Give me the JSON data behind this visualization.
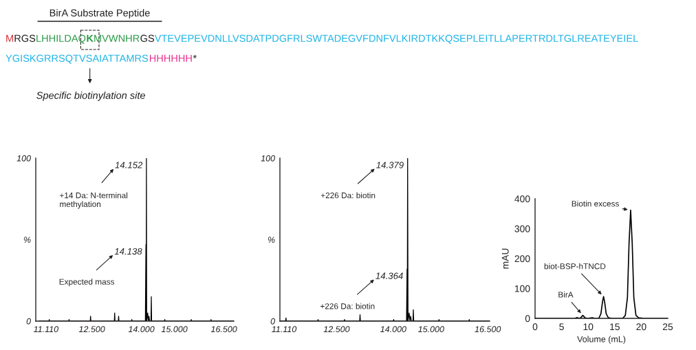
{
  "chart_data": [
    {
      "type": "other",
      "title": "BirA Substrate Peptide",
      "annotations": [
        "M",
        "RGS",
        "LHHILDAQ",
        "K",
        "MVWNHR",
        "GS",
        "VTEVEPEVDNLLVSDATPDGFRLSWTADEGVFDNFVLKIRDTKKQSEPLEITLLAPERTRDLTGLREATEYEIEL",
        "YGISKGRRSQTVSAIATTAMRS",
        "HHHHHH",
        "*",
        "Specific biotinylation site"
      ],
      "colors": [
        "#d62f3a",
        "#231f20",
        "#2a9a48",
        "#2a9a48",
        "#2a9a48",
        "#231f20",
        "#1fb4e6",
        "#1fb4e6",
        "#e8308f",
        "#231f20",
        "#231f20"
      ]
    },
    {
      "type": "line",
      "series": [
        {
          "color": "#000000",
          "x": [
            10900,
            11200,
            11210,
            11220,
            11800,
            11810,
            11820,
            12450,
            12460,
            12470,
            13180,
            13190,
            13200,
            13300,
            13310,
            13320,
            13700,
            13710,
            13720,
            14120,
            14138,
            14145,
            14152,
            14160,
            14190,
            14210,
            14230,
            14250,
            14290,
            14300,
            14310,
            14700,
            14710,
            14720,
            15500,
            15510,
            15520,
            16100,
            16110,
            16120,
            16800
          ],
          "values": [
            0,
            0,
            1,
            0,
            0,
            1,
            0,
            0,
            3,
            0,
            0,
            5,
            0,
            0,
            3,
            0,
            0,
            1,
            0,
            0,
            47,
            0,
            100,
            0,
            5,
            0,
            3,
            0,
            0,
            15,
            0,
            0,
            1,
            0,
            0,
            1,
            0,
            0,
            1,
            0,
            0
          ]
        }
      ],
      "xlim": [
        10800,
        16800
      ],
      "xticks": [
        {
          "value": 11110,
          "label": "11.110"
        },
        {
          "value": 12500,
          "label": "12.500"
        },
        {
          "value": 14000,
          "label": "14.000"
        },
        {
          "value": 15000,
          "label": "15.000"
        },
        {
          "value": 16500,
          "label": "16.500"
        }
      ],
      "ylim": [
        0,
        100
      ],
      "yticks": [
        0,
        {
          "value": 50,
          "label": "%"
        },
        100
      ],
      "annotations": [
        {
          "text": "14.152",
          "x": 14152,
          "y": 100
        },
        "+14 Da: N-terminal\nmethylation",
        {
          "text": "14.138",
          "x": 14138,
          "y": 47
        },
        "Expected mass"
      ]
    },
    {
      "type": "line",
      "series": [
        {
          "color": "#000000",
          "x": [
            11000,
            11150,
            11160,
            11170,
            12000,
            12010,
            12020,
            12700,
            12710,
            12720,
            13110,
            13120,
            13130,
            14000,
            14010,
            14020,
            14350,
            14364,
            14370,
            14379,
            14390,
            14420,
            14440,
            14460,
            14480,
            14520,
            14530,
            14540,
            15200,
            15210,
            15220,
            16000,
            16010,
            16020,
            16550
          ],
          "values": [
            0,
            0,
            2,
            0,
            0,
            1,
            0,
            0,
            1,
            0,
            0,
            4,
            0,
            0,
            1,
            0,
            0,
            32,
            0,
            100,
            0,
            5,
            0,
            3,
            0,
            0,
            7,
            0,
            0,
            1,
            0,
            0,
            1,
            0,
            0
          ]
        }
      ],
      "xlim": [
        11000,
        16550
      ],
      "xticks": [
        {
          "value": 11110,
          "label": "11.110"
        },
        {
          "value": 12500,
          "label": "12.500"
        },
        {
          "value": 14000,
          "label": "14.000"
        },
        {
          "value": 15000,
          "label": "15.000"
        },
        {
          "value": 16500,
          "label": "16.500"
        }
      ],
      "ylim": [
        0,
        100
      ],
      "yticks": [
        0,
        {
          "value": 50,
          "label": "%"
        },
        100
      ],
      "annotations": [
        {
          "text": "14.379",
          "x": 14379,
          "y": 100
        },
        "+226 Da: biotin",
        {
          "text": "14.364",
          "x": 14364,
          "y": 32
        },
        "+226 Da: biotin"
      ]
    },
    {
      "type": "line",
      "xlabel": "Volume (mL)",
      "ylabel": "mAU",
      "series": [
        {
          "color": "#000000",
          "x": [
            0,
            7.5,
            7.9,
            8.3,
            8.6,
            9.0,
            9.4,
            9.8,
            10.8,
            11.2,
            12.0,
            12.4,
            12.7,
            12.9,
            13.1,
            13.4,
            13.8,
            14.5,
            16.5,
            17.0,
            17.4,
            17.7,
            18.0,
            18.3,
            18.6,
            19.0,
            19.5,
            20.5,
            25
          ],
          "values": [
            0,
            0,
            3,
            0,
            2,
            10,
            2,
            0,
            2,
            0,
            0,
            15,
            55,
            73,
            55,
            15,
            2,
            0,
            0,
            10,
            70,
            250,
            362,
            250,
            70,
            10,
            2,
            0,
            0
          ]
        }
      ],
      "xlim": [
        0,
        25
      ],
      "xticks": [
        0,
        5,
        10,
        15,
        20,
        25
      ],
      "ylim": [
        0,
        400
      ],
      "yticks": [
        0,
        100,
        200,
        300,
        400
      ],
      "annotations": [
        {
          "text": "BirA",
          "x": 9.0,
          "y": 10
        },
        {
          "text": "biot-BSP-hTNCD",
          "x": 12.9,
          "y": 73
        },
        {
          "text": "Biotin excess",
          "x": 18.0,
          "y": 362
        }
      ]
    }
  ]
}
